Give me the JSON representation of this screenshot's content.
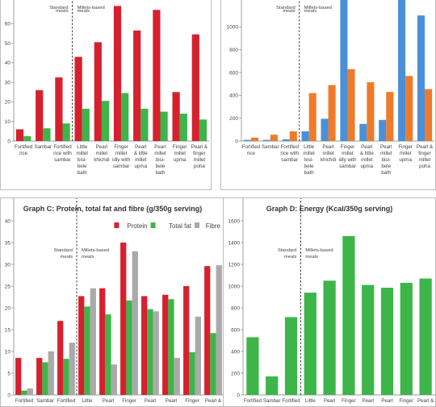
{
  "chart_data": [
    {
      "id": "A",
      "type": "bar",
      "title": "",
      "categories": [
        [
          "Fortified",
          "rice"
        ],
        [
          "Sambar"
        ],
        [
          "Fortified",
          "rice with",
          "sambar"
        ],
        [
          "Little",
          "millet",
          "bisi-",
          "bele",
          "bath"
        ],
        [
          "Pearl",
          "millet",
          "khichdi"
        ],
        [
          "Finger",
          "millet",
          "idly with",
          "sambar"
        ],
        [
          "Pearl",
          "& little",
          "millet",
          "upma"
        ],
        [
          "Pearl",
          "millet",
          "bisi-",
          "bele",
          "bath"
        ],
        [
          "Finger",
          "millet",
          "upma"
        ],
        [
          "Pearl &",
          "finger",
          "millet",
          "poha"
        ]
      ],
      "series": [
        {
          "color": "#d7202e",
          "values": [
            6,
            26,
            32.5,
            43,
            50.5,
            69,
            56.5,
            67,
            25,
            54.5
          ]
        },
        {
          "color": "#3db54a",
          "values": [
            2.5,
            6.5,
            9,
            16.5,
            20.5,
            24.5,
            16.5,
            15,
            14,
            11
          ]
        }
      ],
      "ylim": [
        0,
        70
      ],
      "yticks": [
        0,
        10,
        20,
        30,
        40,
        50,
        60
      ],
      "group_labels": {
        "left": [
          "Standard",
          "meals"
        ],
        "right": [
          "Millets-based",
          "meals"
        ]
      },
      "divider_after": 3
    },
    {
      "id": "B",
      "type": "bar",
      "title": "",
      "categories": [
        [
          "Fortified",
          "rice"
        ],
        [
          "Sambar"
        ],
        [
          "Fortified",
          "rice with",
          "sambar"
        ],
        [
          "Little",
          "millet",
          "bisi-",
          "bele",
          "bath"
        ],
        [
          "Pearl",
          "millet",
          "khichdi"
        ],
        [
          "Finger",
          "millet",
          "idly with",
          "sambar"
        ],
        [
          "Pearl",
          "& little",
          "millet",
          "upma"
        ],
        [
          "Pearl",
          "millet",
          "bisi-",
          "bele",
          "bath"
        ],
        [
          "Finger",
          "millet",
          "upma"
        ],
        [
          "Pearl &",
          "finger",
          "millet",
          "poha"
        ]
      ],
      "series": [
        {
          "color": "#4a90d9",
          "values": [
            10,
            10,
            15,
            85,
            195,
            1250,
            150,
            185,
            1250,
            1100
          ]
        },
        {
          "color": "#ee7b2c",
          "values": [
            30,
            55,
            85,
            420,
            490,
            630,
            515,
            430,
            570,
            455
          ]
        }
      ],
      "ylim": [
        0,
        1200
      ],
      "yticks": [
        0,
        200,
        400,
        600,
        800,
        1000
      ],
      "group_labels": {
        "left": [
          "Standard",
          "meals"
        ],
        "right": [
          "Millets-based",
          "meals"
        ]
      },
      "divider_after": 3
    },
    {
      "id": "C",
      "type": "bar",
      "title": "Graph C: Protein, total fat and fibre (g/350g serving)",
      "categories": [
        [
          "Fortified"
        ],
        [
          "Sambar"
        ],
        [
          "Fortified"
        ],
        [
          "Little"
        ],
        [
          "Pearl"
        ],
        [
          "Finger"
        ],
        [
          "Pearl"
        ],
        [
          "Pearl"
        ],
        [
          "Finger"
        ],
        [
          "Pearl &"
        ]
      ],
      "series": [
        {
          "name": "Protein",
          "color": "#d7202e",
          "values": [
            8.5,
            8.5,
            17,
            22.7,
            24.5,
            35,
            22.7,
            23,
            25,
            29.6
          ]
        },
        {
          "name": "Total fat",
          "color": "#3db54a",
          "values": [
            1,
            7.5,
            8.3,
            20.3,
            18.5,
            21.7,
            19.7,
            22,
            9.8,
            14.2
          ]
        },
        {
          "name": "Fibre",
          "color": "#aaaaaa",
          "values": [
            1.5,
            10,
            12,
            24.5,
            7,
            33,
            19.2,
            8.5,
            18,
            29.8
          ]
        }
      ],
      "ylim": [
        0,
        40
      ],
      "yticks": [
        0,
        5,
        10,
        15,
        20,
        25,
        30,
        35,
        40
      ],
      "legend": "top-right",
      "group_labels": {
        "left": [
          "Standard",
          "meals"
        ],
        "right": [
          "Millets-based",
          "meals"
        ]
      },
      "divider_after": 3
    },
    {
      "id": "D",
      "type": "bar",
      "title": "Graph D: Energy (Kcal/350g serving)",
      "categories": [
        [
          "Fortified"
        ],
        [
          "Sambar"
        ],
        [
          "Fortified"
        ],
        [
          "Little"
        ],
        [
          "Pearl"
        ],
        [
          "Finger"
        ],
        [
          "Pearl"
        ],
        [
          "Pearl"
        ],
        [
          "Finger"
        ],
        [
          "Pearl &"
        ]
      ],
      "series": [
        {
          "color": "#3db54a",
          "values": [
            530,
            170,
            715,
            940,
            1050,
            1460,
            1010,
            985,
            1030,
            1070
          ]
        }
      ],
      "ylim": [
        0,
        1600
      ],
      "yticks": [
        0,
        200,
        400,
        600,
        800,
        1000,
        1200,
        1400,
        1600
      ],
      "group_labels": {
        "left": [
          "Standard",
          "meals"
        ],
        "right": [
          "Millets-based",
          "meals"
        ]
      },
      "divider_after": 3
    }
  ]
}
